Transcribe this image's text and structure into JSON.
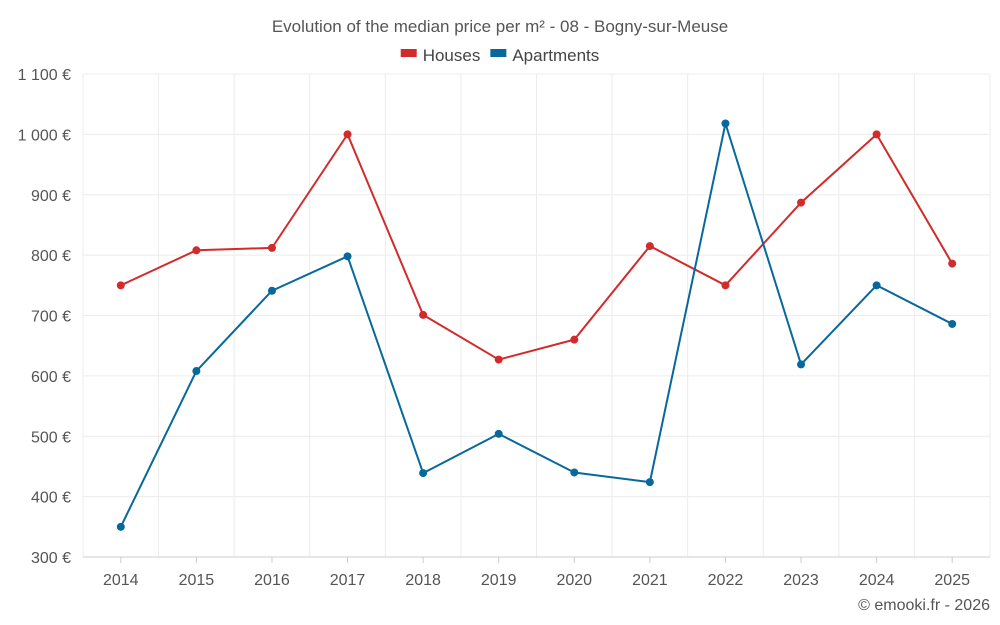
{
  "chart_data": {
    "type": "line",
    "title": "Evolution of the median price per m² - 08 - Bogny-sur-Meuse",
    "categories": [
      "2014",
      "2015",
      "2016",
      "2017",
      "2018",
      "2019",
      "2020",
      "2021",
      "2022",
      "2023",
      "2024",
      "2025"
    ],
    "series": [
      {
        "name": "Houses",
        "color": "#d12b2b",
        "values": [
          750,
          808,
          812,
          1000,
          701,
          627,
          660,
          815,
          750,
          887,
          1000,
          786
        ]
      },
      {
        "name": "Apartments",
        "color": "#08689b",
        "values": [
          350,
          608,
          741,
          798,
          439,
          504,
          440,
          424,
          1018,
          619,
          750,
          686
        ]
      }
    ],
    "ylim": [
      300,
      1100
    ],
    "yticks": [
      300,
      400,
      500,
      600,
      700,
      800,
      900,
      1000,
      1100
    ],
    "ytick_labels": [
      "300 €",
      "400 €",
      "500 €",
      "600 €",
      "700 €",
      "800 €",
      "900 €",
      "1 000 €",
      "1 100 €"
    ],
    "grid": true,
    "legend_position": "top-center",
    "xlabel": "",
    "ylabel": ""
  },
  "credit": "© emooki.fr - 2026"
}
